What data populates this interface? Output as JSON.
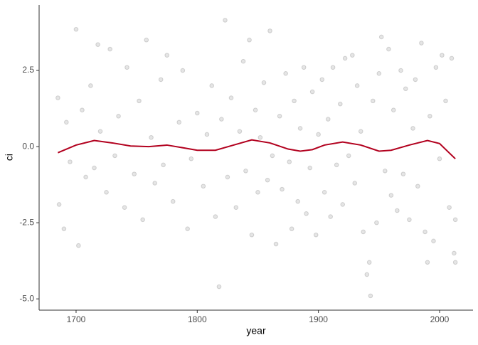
{
  "chart_data": {
    "type": "scatter",
    "x_label": "year",
    "y_label": "ci",
    "xlim": [
      1669.5,
      2027.6
    ],
    "ylim": [
      -5.37,
      4.65
    ],
    "xticks": [
      1700,
      1800,
      1900,
      2000
    ],
    "yticks": [
      {
        "value": 2.5,
        "label": "2.5"
      },
      {
        "value": 0,
        "label": "0.0"
      },
      {
        "value": -2.5,
        "label": "-2.5"
      },
      {
        "value": -5,
        "label": "-5.0"
      }
    ],
    "color": "#000000",
    "x": [
      1685,
      1686,
      1690,
      1692,
      1695,
      1700,
      1702,
      1705,
      1708,
      1712,
      1715,
      1718,
      1720,
      1725,
      1728,
      1732,
      1735,
      1740,
      1742,
      1748,
      1752,
      1755,
      1758,
      1762,
      1765,
      1770,
      1772,
      1775,
      1780,
      1785,
      1788,
      1792,
      1795,
      1800,
      1805,
      1808,
      1812,
      1815,
      1818,
      1820,
      1823,
      1825,
      1828,
      1832,
      1835,
      1838,
      1840,
      1843,
      1845,
      1848,
      1850,
      1852,
      1855,
      1858,
      1860,
      1862,
      1865,
      1868,
      1870,
      1873,
      1876,
      1878,
      1880,
      1883,
      1885,
      1888,
      1890,
      1893,
      1895,
      1898,
      1900,
      1903,
      1905,
      1908,
      1910,
      1912,
      1915,
      1918,
      1920,
      1922,
      1925,
      1928,
      1930,
      1932,
      1935,
      1937,
      1940,
      1942,
      1943,
      1945,
      1948,
      1950,
      1952,
      1955,
      1958,
      1960,
      1962,
      1965,
      1968,
      1970,
      1972,
      1975,
      1978,
      1980,
      1982,
      1985,
      1988,
      1990,
      1992,
      1995,
      1997,
      2000,
      2002,
      2005,
      2008,
      2010,
      2012,
      2013,
      2013
    ],
    "values": [
      1.6,
      -1.9,
      -2.7,
      0.8,
      -0.5,
      3.85,
      -3.25,
      1.2,
      -1.0,
      2.0,
      -0.7,
      3.35,
      0.5,
      -1.5,
      3.2,
      -0.3,
      1.0,
      -2.0,
      2.6,
      -0.9,
      1.5,
      -2.4,
      3.5,
      0.3,
      -1.2,
      2.2,
      -0.6,
      3.0,
      -1.8,
      0.8,
      2.5,
      -2.7,
      -0.4,
      1.1,
      -1.3,
      0.4,
      2.0,
      -2.3,
      -4.6,
      0.9,
      4.15,
      -1.0,
      1.6,
      -2.0,
      0.5,
      2.8,
      -0.8,
      3.5,
      -2.9,
      1.2,
      -1.5,
      0.3,
      2.1,
      -1.1,
      3.8,
      -0.3,
      -3.2,
      1.0,
      -1.4,
      2.4,
      -0.5,
      -2.7,
      1.5,
      -1.8,
      0.6,
      2.6,
      -2.2,
      -0.7,
      1.8,
      -2.9,
      0.4,
      2.2,
      -1.5,
      0.9,
      -2.3,
      2.6,
      -0.6,
      1.4,
      -1.9,
      2.9,
      -0.3,
      3.0,
      -1.2,
      2.0,
      0.5,
      -2.8,
      -4.2,
      -3.8,
      -4.9,
      1.5,
      -2.5,
      2.4,
      3.6,
      -0.8,
      3.2,
      -1.6,
      1.2,
      -2.1,
      2.5,
      -0.9,
      1.9,
      -2.4,
      0.6,
      2.2,
      -1.3,
      3.4,
      -2.8,
      -3.8,
      1.0,
      -3.1,
      2.6,
      -0.4,
      3.0,
      1.5,
      -2.0,
      2.9,
      -3.5,
      -3.8,
      -2.4
    ],
    "smooth": {
      "color": "#b2001e",
      "x": [
        1685,
        1700,
        1715,
        1730,
        1745,
        1760,
        1775,
        1790,
        1800,
        1815,
        1830,
        1845,
        1860,
        1875,
        1885,
        1895,
        1905,
        1920,
        1935,
        1950,
        1960,
        1975,
        1990,
        2000,
        2013
      ],
      "values": [
        -0.2,
        0.05,
        0.2,
        0.12,
        0.02,
        0.0,
        0.05,
        -0.05,
        -0.12,
        -0.12,
        0.05,
        0.22,
        0.12,
        -0.08,
        -0.15,
        -0.1,
        0.05,
        0.15,
        0.05,
        -0.15,
        -0.12,
        0.05,
        0.2,
        0.1,
        -0.4
      ]
    }
  }
}
